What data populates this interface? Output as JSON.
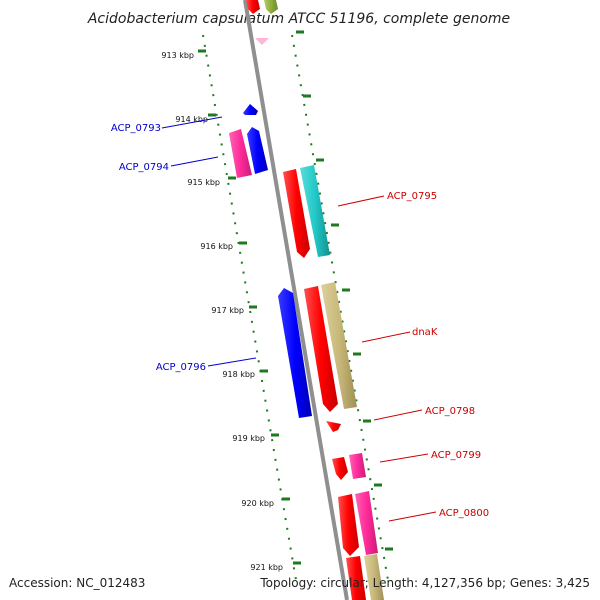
{
  "title": "Acidobacterium capsulatum ATCC 51196, complete genome",
  "footer": {
    "accession": "Accession: NC_012483",
    "summary": "Topology: circular; Length: 4,127,356 bp; Genes: 3,425"
  },
  "ticks": [
    "913 kbp",
    "914 kbp",
    "915 kbp",
    "916 kbp",
    "917 kbp",
    "918 kbp",
    "919 kbp",
    "920 kbp",
    "921 kbp"
  ],
  "gene_labels": [
    {
      "name": "acp0793",
      "text": "ACP_0793",
      "strand": "reverse"
    },
    {
      "name": "acp0794",
      "text": "ACP_0794",
      "strand": "reverse"
    },
    {
      "name": "acp0795",
      "text": "ACP_0795",
      "strand": "forward"
    },
    {
      "name": "dnak",
      "text": "dnaK",
      "strand": "forward"
    },
    {
      "name": "acp0796",
      "text": "ACP_0796",
      "strand": "reverse"
    },
    {
      "name": "acp0798",
      "text": "ACP_0798",
      "strand": "forward"
    },
    {
      "name": "acp0799",
      "text": "ACP_0799",
      "strand": "forward"
    },
    {
      "name": "acp0800",
      "text": "ACP_0800",
      "strand": "forward"
    }
  ],
  "colors": {
    "backbone": "#8f8f8f",
    "tick": "#1f7a1f",
    "reverse_label": "#0000cc",
    "forward_label": "#cc0000",
    "red": "#ff0000",
    "blue": "#0000ff",
    "magenta": "#ff2a9a",
    "cyan": "#22c8c8",
    "khaki": "#c8b87a",
    "olive": "#8fae3c",
    "pink": "#ffb6d5"
  }
}
